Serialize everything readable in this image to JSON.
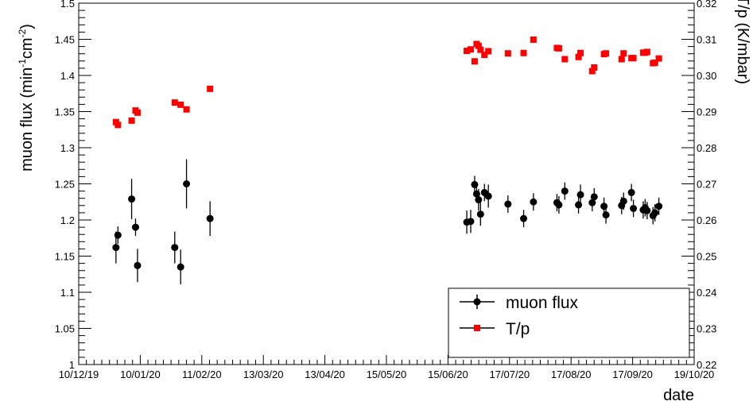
{
  "chart_data": {
    "type": "scatter",
    "x_axis": {
      "label": "date",
      "tick_labels": [
        "10/12/19",
        "10/01/20",
        "11/02/20",
        "13/03/20",
        "13/04/20",
        "15/05/20",
        "15/06/20",
        "17/07/20",
        "17/08/20",
        "17/09/20",
        "19/10/20"
      ],
      "range": [
        "2019-12-10",
        "2020-10-19"
      ]
    },
    "y_axis_left": {
      "label_base": "muon flux (min",
      "label_sup1": "-1",
      "label_mid": "cm",
      "label_sup2": "-2",
      "label_end": ")",
      "range": [
        1.0,
        1.5
      ],
      "tick_labels": [
        "1",
        "1.05",
        "1.1",
        "1.15",
        "1.2",
        "1.25",
        "1.3",
        "1.35",
        "1.4",
        "1.45",
        "1.5"
      ]
    },
    "y_axis_right": {
      "label": "T/p (K/mbar)",
      "range": [
        0.22,
        0.32
      ],
      "tick_labels": [
        "0.22",
        "0.23",
        "0.24",
        "0.25",
        "0.26",
        "0.27",
        "0.28",
        "0.29",
        "0.30",
        "0.31",
        "0.32"
      ]
    },
    "legend": {
      "position": "bottom-right",
      "entries": [
        "muon flux",
        "T/p"
      ]
    },
    "grid": false,
    "series": [
      {
        "name": "muon flux",
        "axis": "left",
        "color": "#000000",
        "marker": "circle",
        "x": [
          "2019-12-29",
          "2019-12-30",
          "2020-01-06",
          "2020-01-08",
          "2020-01-09",
          "2020-01-28",
          "2020-01-31",
          "2020-02-03",
          "2020-02-15",
          "2020-06-25",
          "2020-06-27",
          "2020-06-29",
          "2020-06-30",
          "2020-07-01",
          "2020-07-02",
          "2020-07-04",
          "2020-07-06",
          "2020-07-16",
          "2020-07-24",
          "2020-07-29",
          "2020-08-10",
          "2020-08-11",
          "2020-08-14",
          "2020-08-21",
          "2020-08-22",
          "2020-08-28",
          "2020-08-29",
          "2020-09-03",
          "2020-09-04",
          "2020-09-12",
          "2020-09-13",
          "2020-09-17",
          "2020-09-18",
          "2020-09-23",
          "2020-09-24",
          "2020-09-25",
          "2020-09-28",
          "2020-09-29",
          "2020-10-01"
        ],
        "y": [
          1.162,
          1.179,
          1.229,
          1.19,
          1.137,
          1.162,
          1.135,
          1.25,
          1.202,
          1.197,
          1.198,
          1.249,
          1.236,
          1.228,
          1.208,
          1.238,
          1.233,
          1.222,
          1.202,
          1.225,
          1.224,
          1.221,
          1.24,
          1.221,
          1.235,
          1.224,
          1.232,
          1.219,
          1.207,
          1.22,
          1.226,
          1.238,
          1.216,
          1.214,
          1.217,
          1.213,
          1.206,
          1.21,
          1.219
        ],
        "yerr": [
          0.022,
          0.012,
          0.028,
          0.012,
          0.023,
          0.022,
          0.024,
          0.034,
          0.024,
          0.016,
          0.016,
          0.012,
          0.012,
          0.015,
          0.016,
          0.012,
          0.016,
          0.012,
          0.012,
          0.012,
          0.012,
          0.012,
          0.012,
          0.012,
          0.014,
          0.012,
          0.012,
          0.012,
          0.012,
          0.012,
          0.012,
          0.012,
          0.012,
          0.012,
          0.012,
          0.012,
          0.012,
          0.012,
          0.012
        ]
      },
      {
        "name": "T/p",
        "axis": "right",
        "color": "#ff0000",
        "marker": "square",
        "x": [
          "2019-12-29",
          "2019-12-30",
          "2020-01-06",
          "2020-01-08",
          "2020-01-09",
          "2020-01-28",
          "2020-01-31",
          "2020-02-03",
          "2020-02-15",
          "2020-06-25",
          "2020-06-27",
          "2020-06-29",
          "2020-06-30",
          "2020-07-01",
          "2020-07-02",
          "2020-07-04",
          "2020-07-06",
          "2020-07-16",
          "2020-07-24",
          "2020-07-29",
          "2020-08-10",
          "2020-08-11",
          "2020-08-14",
          "2020-08-21",
          "2020-08-22",
          "2020-08-28",
          "2020-08-29",
          "2020-09-03",
          "2020-09-04",
          "2020-09-12",
          "2020-09-13",
          "2020-09-17",
          "2020-09-18",
          "2020-09-23",
          "2020-09-24",
          "2020-09-25",
          "2020-09-28",
          "2020-09-29",
          "2020-10-01"
        ],
        "y": [
          0.2871,
          0.2863,
          0.2875,
          0.2903,
          0.2897,
          0.2925,
          0.2919,
          0.2906,
          0.2963,
          0.3068,
          0.3072,
          0.3039,
          0.3087,
          0.3082,
          0.3071,
          0.3057,
          0.3067,
          0.3061,
          0.3062,
          0.3099,
          0.3076,
          0.3075,
          0.3045,
          0.3051,
          0.3062,
          0.3012,
          0.3022,
          0.3059,
          0.3061,
          0.3045,
          0.3061,
          0.3048,
          0.3048,
          0.3063,
          0.3063,
          0.3065,
          0.3034,
          0.3035,
          0.3047
        ]
      }
    ]
  }
}
